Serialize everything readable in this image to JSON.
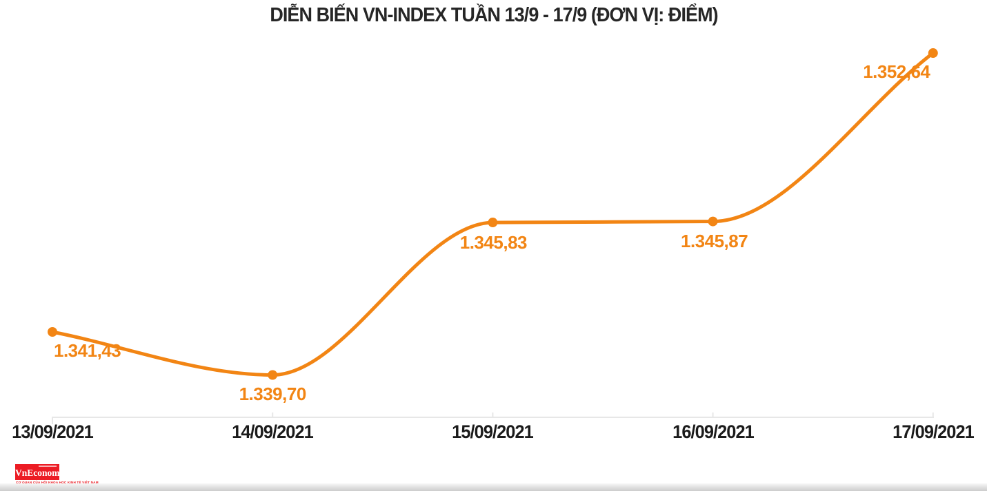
{
  "header": {
    "title": "DIỄN BIẾN VN-INDEX TUẦN 13/9 - 17/9 (ĐƠN VỊ: ĐIỂM)"
  },
  "chart_data": {
    "type": "line",
    "title": "DIỄN BIẾN VN-INDEX TUẦN 13/9 - 17/9 (ĐƠN VỊ: ĐIỂM)",
    "unit": "ĐIỂM",
    "categories": [
      "13/09/2021",
      "14/09/2021",
      "15/09/2021",
      "16/09/2021",
      "17/09/2021"
    ],
    "series": [
      {
        "name": "VN-INDEX",
        "values": [
          1341.43,
          1339.7,
          1345.83,
          1345.87,
          1352.64
        ]
      }
    ],
    "point_labels": [
      "1.341,43",
      "1.339,70",
      "1.345,83",
      "1.345,87",
      "1.352,64"
    ],
    "ylim": [
      1337,
      1355
    ],
    "grid": false,
    "legend": "none",
    "line_color": "#F28514",
    "point_color": "#F28514",
    "label_color": "#F28514",
    "axis_line_color": "#e7e7e7",
    "axis_text_color": "#1b1b1b",
    "title_color": "#262626",
    "smooth": true
  },
  "footer": {
    "logo_text": "VnEconomy",
    "logo_bg": "#EC1C24",
    "tagline": "CƠ QUAN CỦA HỘI KHOA HỌC KINH TẾ VIỆT NAM"
  }
}
